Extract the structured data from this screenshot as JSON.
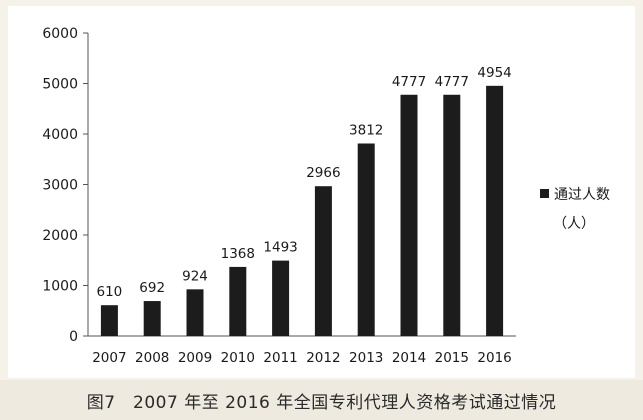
{
  "chart_data": {
    "type": "bar",
    "categories": [
      "2007",
      "2008",
      "2009",
      "2010",
      "2011",
      "2012",
      "2013",
      "2014",
      "2015",
      "2016"
    ],
    "values": [
      610,
      692,
      924,
      1368,
      1493,
      2966,
      3812,
      4777,
      4777,
      4954
    ],
    "data_labels": [
      "610",
      "692",
      "924",
      "1368",
      "1493",
      "2966",
      "3812",
      "4777",
      "4777",
      "4954"
    ],
    "y_ticks": [
      "0",
      "1000",
      "2000",
      "3000",
      "4000",
      "5000",
      "6000"
    ],
    "ylim": [
      0,
      6000
    ],
    "legend": {
      "label_line1": "通过人数",
      "label_line2": "（人）",
      "position": "right"
    },
    "bar_color": "#1c1c1c",
    "grid": false
  },
  "caption": "图7　2007 年至 2016 年全国专利代理人资格考试通过情况"
}
